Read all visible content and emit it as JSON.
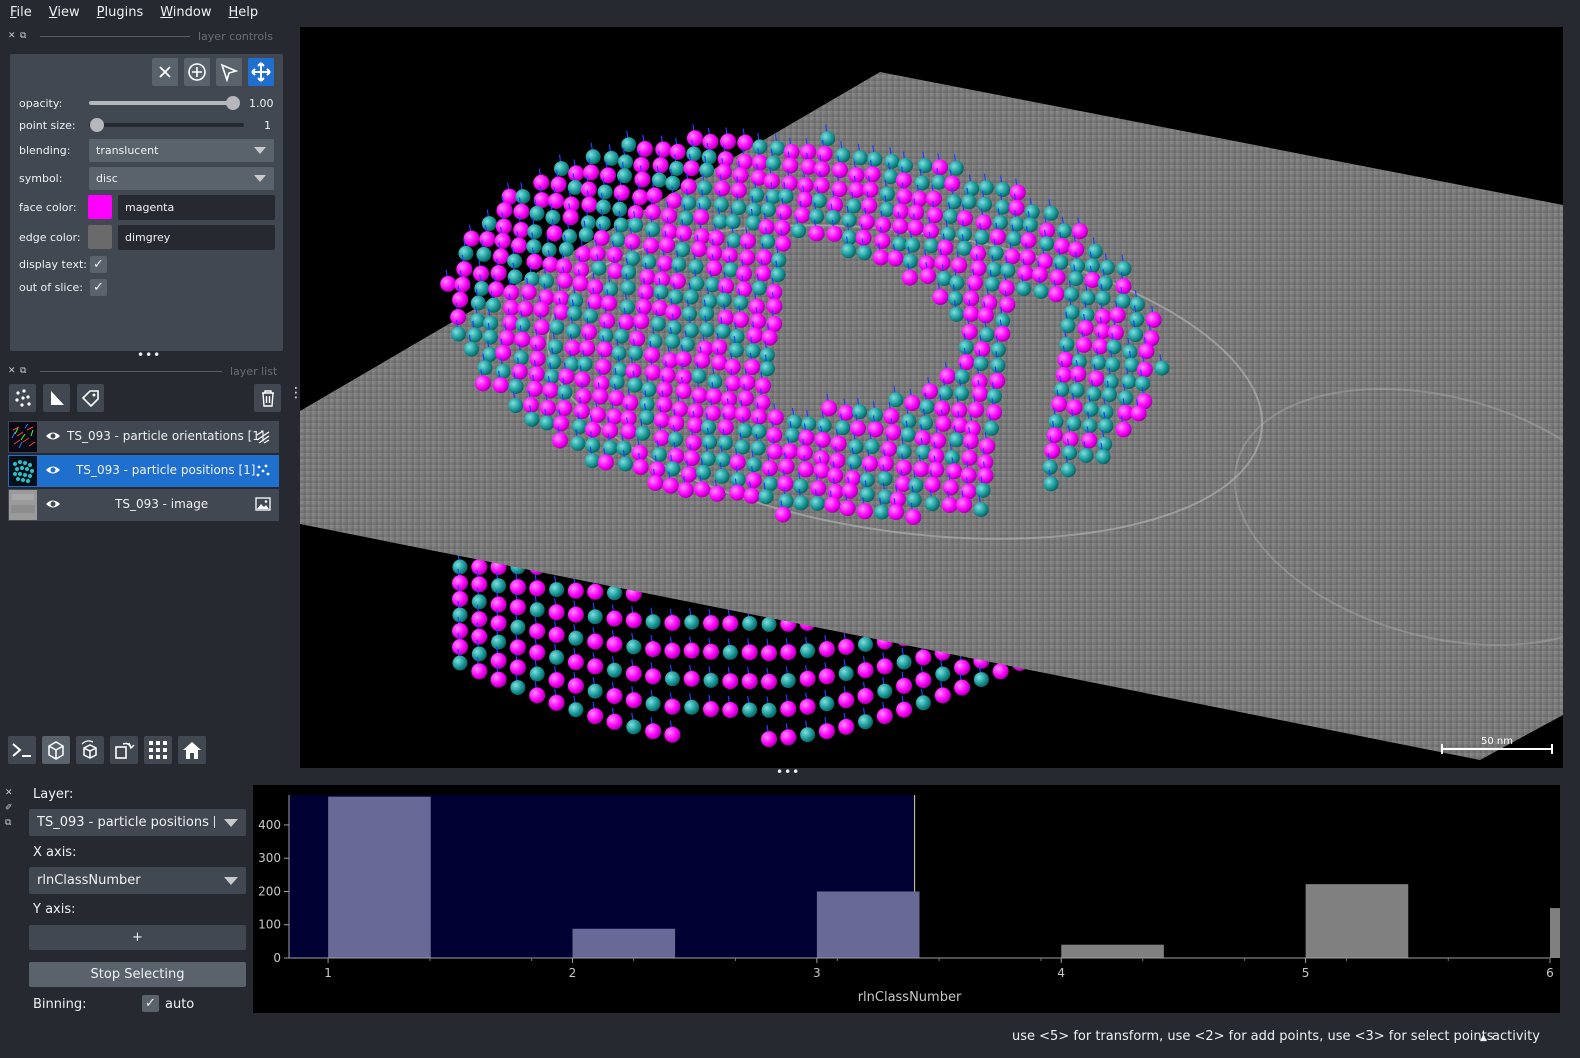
{
  "menubar": {
    "items": [
      "File",
      "View",
      "Plugins",
      "Window",
      "Help"
    ]
  },
  "layer_controls": {
    "title": "layer controls",
    "opacity": {
      "label": "opacity:",
      "value": "1.00",
      "fraction": 1.0
    },
    "point_size": {
      "label": "point size:",
      "value": "1",
      "fraction": 0.0
    },
    "blending": {
      "label": "blending:",
      "value": "translucent"
    },
    "symbol": {
      "label": "symbol:",
      "value": "disc"
    },
    "face_color": {
      "label": "face color:",
      "value": "magenta",
      "swatch": "#ff00ff"
    },
    "edge_color": {
      "label": "edge color:",
      "value": "dimgrey",
      "swatch": "#696969"
    },
    "display_text": {
      "label": "display text:",
      "checked": true
    },
    "out_of_slice": {
      "label": "out of slice:",
      "checked": true
    }
  },
  "layer_list": {
    "title": "layer list",
    "layers": [
      {
        "name": "TS_093 - particle orientations [1]",
        "visible": true,
        "selected": false
      },
      {
        "name": "TS_093 - particle positions [1]",
        "visible": true,
        "selected": true
      },
      {
        "name": "TS_093 - image",
        "visible": true,
        "selected": false
      }
    ]
  },
  "viewer": {
    "scalebar_label": "50 nm"
  },
  "plotter": {
    "layer_label": "Layer:",
    "layer_value": "TS_093 - particle positions [1]",
    "x_axis_label": "X axis:",
    "x_axis_value": "rlnClassNumber",
    "y_axis_label": "Y axis:",
    "y_axis_button": "+",
    "stop_button": "Stop Selecting",
    "binning_label": "Binning:",
    "binning_auto_label": "auto",
    "binning_auto_checked": true
  },
  "chart_data": {
    "type": "bar",
    "xlabel": "rlnClassNumber",
    "ylabel": "",
    "categories": [
      1,
      2,
      3,
      4,
      5,
      6
    ],
    "values": [
      485,
      88,
      200,
      40,
      222,
      150
    ],
    "selected_categories": [
      1,
      2,
      3
    ],
    "ylim": [
      0,
      490
    ],
    "yticks": [
      0,
      100,
      200,
      300,
      400
    ],
    "xticks": [
      1,
      2,
      3,
      4,
      5,
      6
    ],
    "selected_color": "#696996",
    "unselected_color": "#808080",
    "selection_region_color": "#000033"
  },
  "status_bar": {
    "hint": "use <5> for transform, use <2> for add points, use <3> for select points",
    "activity": "activity"
  }
}
